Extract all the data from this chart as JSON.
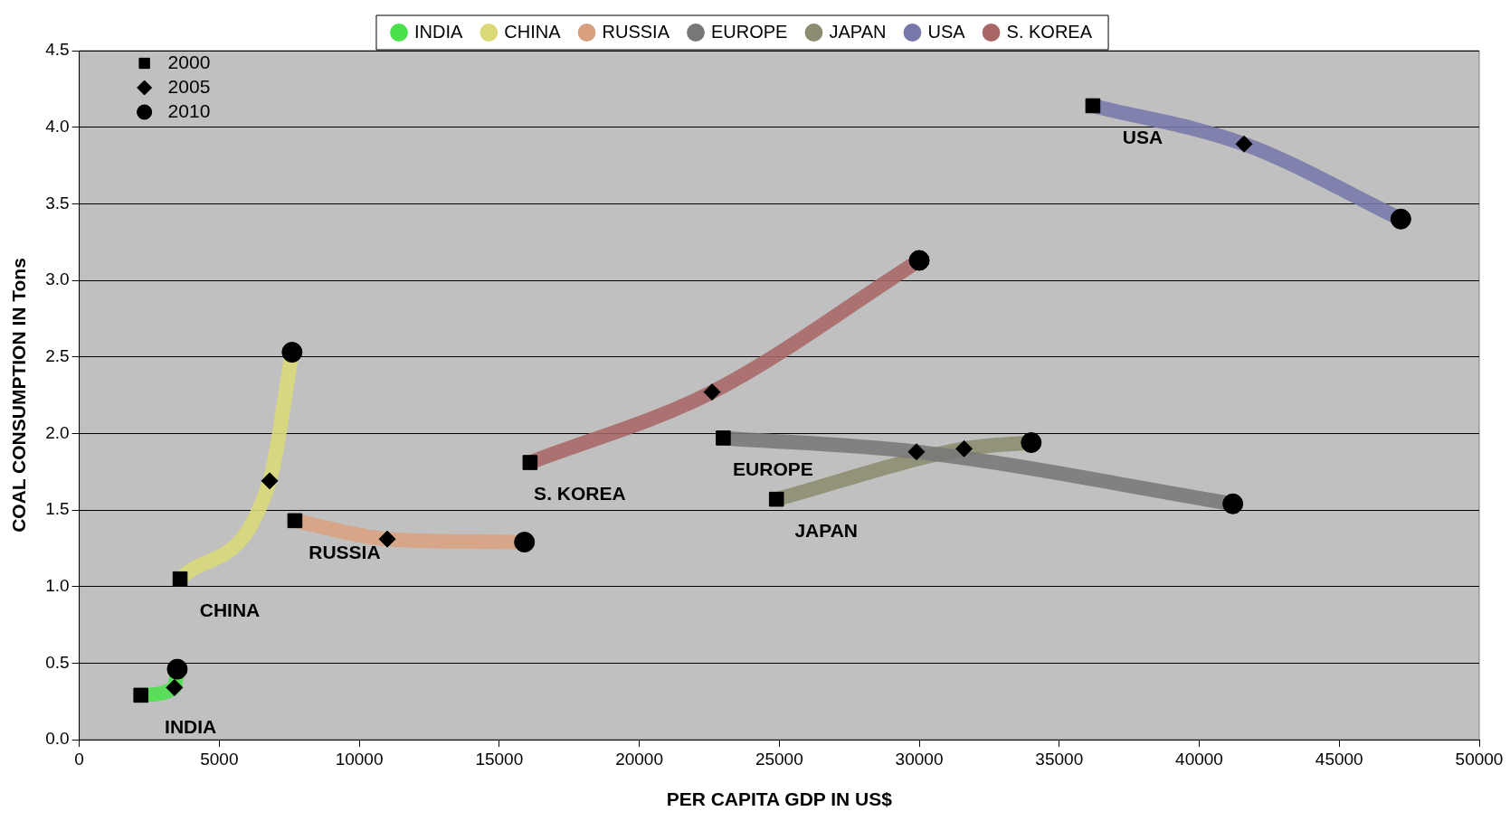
{
  "chart_data": {
    "type": "scatter",
    "xlabel": "PER CAPITA GDP IN US$",
    "ylabel": "COAL CONSUMPTION IN Tons",
    "xlim": [
      0,
      50000
    ],
    "xticks": [
      0,
      5000,
      10000,
      15000,
      20000,
      25000,
      30000,
      35000,
      40000,
      45000,
      50000
    ],
    "ylim": [
      0,
      4.5
    ],
    "yticks": [
      {
        "value": 0,
        "label": "0.0"
      },
      {
        "value": 0.5,
        "label": "0.5"
      },
      {
        "value": 1,
        "label": "1.0"
      },
      {
        "value": 1.5,
        "label": "1.5"
      },
      {
        "value": 2,
        "label": "2.0"
      },
      {
        "value": 2.5,
        "label": "2.5"
      },
      {
        "value": 3,
        "label": "3.0"
      },
      {
        "value": 3.5,
        "label": "3.5"
      },
      {
        "value": 4,
        "label": "4.0"
      },
      {
        "value": 4.5,
        "label": "4.5"
      }
    ],
    "grid": "y",
    "legend": "top",
    "series": [
      {
        "type": "line",
        "name": "INDIA",
        "color": "#4be04b",
        "marker": "none",
        "x": [
          2200,
          3400,
          3500
        ],
        "values": [
          0.29,
          0.34,
          0.46
        ]
      },
      {
        "type": "line",
        "name": "CHINA",
        "color": "#d9d977",
        "marker": "none",
        "x": [
          3600,
          6800,
          7600
        ],
        "values": [
          1.05,
          1.69,
          2.53
        ]
      },
      {
        "type": "line",
        "name": "RUSSIA",
        "color": "#d9a07e",
        "marker": "none",
        "x": [
          7700,
          11000,
          15900
        ],
        "values": [
          1.43,
          1.31,
          1.29
        ]
      },
      {
        "type": "line",
        "name": "EUROPE",
        "color": "#777777",
        "marker": "none",
        "x": [
          23000,
          29900,
          41200
        ],
        "values": [
          1.97,
          1.88,
          1.54
        ]
      },
      {
        "type": "line",
        "name": "JAPAN",
        "color": "#8c8c70",
        "marker": "none",
        "x": [
          24900,
          31600,
          34000
        ],
        "values": [
          1.57,
          1.9,
          1.94
        ]
      },
      {
        "type": "line",
        "name": "USA",
        "color": "#7777aa",
        "marker": "none",
        "x": [
          36200,
          41600,
          47200
        ],
        "values": [
          4.14,
          3.89,
          3.4
        ]
      },
      {
        "type": "line",
        "name": "S. KOREA",
        "color": "#a86666",
        "marker": "none",
        "x": [
          16100,
          22600,
          30000
        ],
        "values": [
          1.81,
          2.27,
          3.13
        ]
      },
      {
        "name": "2000",
        "color": "#000000",
        "marker": "square",
        "x": [
          2200,
          3600,
          7700,
          23000,
          24900,
          36200,
          16100
        ],
        "values": [
          0.29,
          1.05,
          1.43,
          1.97,
          1.57,
          4.14,
          1.81
        ]
      },
      {
        "name": "2005",
        "color": "#000000",
        "marker": "diamond",
        "x": [
          3400,
          6800,
          11000,
          29900,
          31600,
          41600,
          22600
        ],
        "values": [
          0.34,
          1.69,
          1.31,
          1.88,
          1.9,
          3.89,
          2.27
        ]
      },
      {
        "name": "2010",
        "color": "#000000",
        "marker": "circle",
        "x": [
          3500,
          7600,
          15900,
          41200,
          34000,
          47200,
          30000
        ],
        "values": [
          0.46,
          2.53,
          1.29,
          1.54,
          1.94,
          3.4,
          3.13
        ]
      }
    ],
    "annotations": [
      "INDIA",
      "CHINA",
      "RUSSIA",
      "EUROPE",
      "JAPAN",
      "USA",
      "S. KOREA"
    ]
  }
}
